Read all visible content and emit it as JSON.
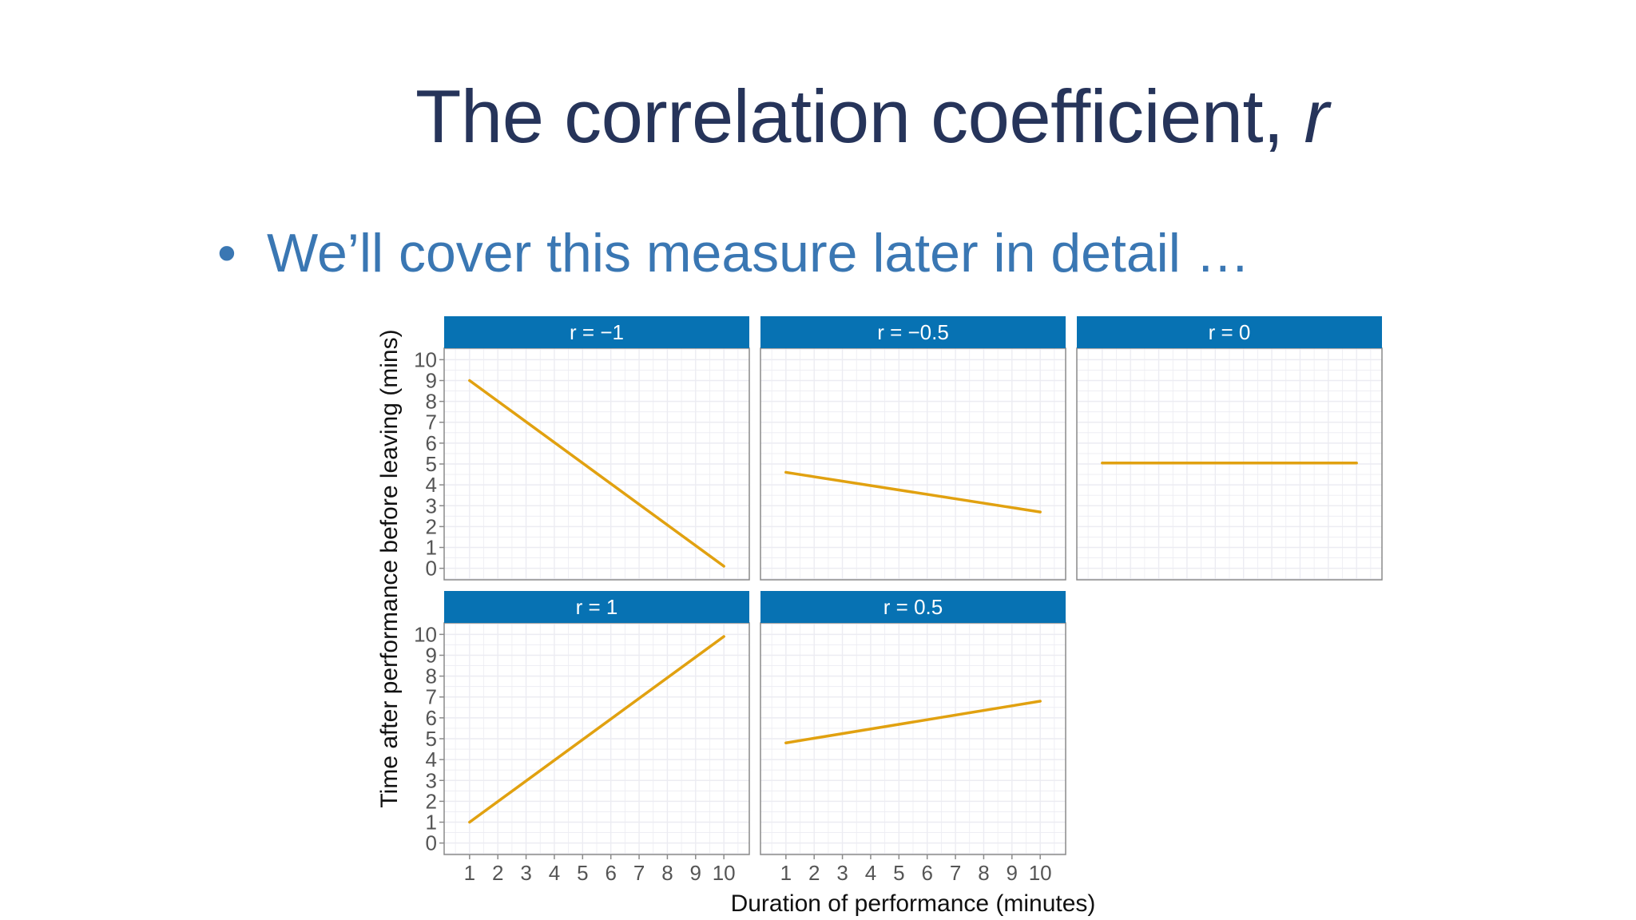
{
  "slide": {
    "title_text": "The correlation coefficient, ",
    "title_variable": "r",
    "bullet_symbol": "•",
    "bullet_text": "We’ll cover this measure later in detail …"
  },
  "colors": {
    "title": "#26345a",
    "bullet": "#3a77b3",
    "strip": "#0772b3",
    "strip_text": "#ffffff",
    "line": "#e1a110",
    "grid": "#ececf2",
    "frame": "#8a8a8a",
    "tick_text": "#555555",
    "axis_title": "#111111"
  },
  "chart_data": {
    "type": "line",
    "xlabel": "Duration of performance (minutes)",
    "ylabel": "Time after performance before leaving (mins)",
    "x_ticks": [
      1,
      2,
      3,
      4,
      5,
      6,
      7,
      8,
      9,
      10
    ],
    "y_ticks": [
      0,
      1,
      2,
      3,
      4,
      5,
      6,
      7,
      8,
      9,
      10
    ],
    "xlim": [
      0.1,
      10.9
    ],
    "ylim": [
      -0.55,
      10.55
    ],
    "grid": true,
    "facets": [
      {
        "label": "r = −1",
        "x": [
          1,
          10
        ],
        "y": [
          9,
          0.1
        ]
      },
      {
        "label": "r = −0.5",
        "x": [
          1,
          10
        ],
        "y": [
          4.6,
          2.7
        ]
      },
      {
        "label": "r = 0",
        "x": [
          1,
          10
        ],
        "y": [
          5.05,
          5.05
        ]
      },
      {
        "label": "r = 1",
        "x": [
          1,
          10
        ],
        "y": [
          1,
          9.9
        ]
      },
      {
        "label": "r = 0.5",
        "x": [
          1,
          10
        ],
        "y": [
          4.8,
          6.8
        ]
      }
    ]
  }
}
